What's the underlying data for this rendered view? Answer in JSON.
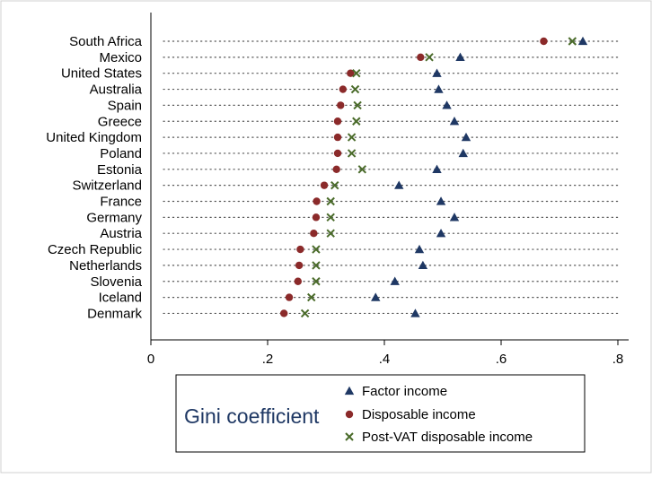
{
  "chart_data": {
    "type": "scatter",
    "categories": [
      "South Africa",
      "Mexico",
      "United States",
      "Australia",
      "Spain",
      "Greece",
      "United Kingdom",
      "Poland",
      "Estonia",
      "Switzerland",
      "France",
      "Germany",
      "Austria",
      "Czech Republic",
      "Netherlands",
      "Slovenia",
      "Iceland",
      "Denmark"
    ],
    "series": [
      {
        "name": "Factor income",
        "marker": "triangle",
        "color": "#1f3864",
        "values": [
          0.74,
          0.53,
          0.49,
          0.493,
          0.507,
          0.52,
          0.54,
          0.535,
          0.49,
          0.425,
          0.497,
          0.52,
          0.497,
          0.46,
          0.466,
          0.418,
          0.385,
          0.453
        ]
      },
      {
        "name": "Disposable income",
        "marker": "circle",
        "color": "#8b2a2a",
        "values": [
          0.673,
          0.462,
          0.342,
          0.329,
          0.325,
          0.32,
          0.32,
          0.32,
          0.318,
          0.297,
          0.284,
          0.283,
          0.279,
          0.256,
          0.254,
          0.252,
          0.237,
          0.228
        ]
      },
      {
        "name": "Post-VAT disposable income",
        "marker": "x",
        "color": "#4a6b2a",
        "values": [
          0.722,
          0.477,
          0.352,
          0.35,
          0.354,
          0.352,
          0.344,
          0.344,
          0.362,
          0.315,
          0.308,
          0.308,
          0.308,
          0.283,
          0.283,
          0.283,
          0.275,
          0.264
        ]
      }
    ],
    "xlim": [
      0,
      0.8
    ],
    "x_ticks": [
      "0",
      ".2",
      ".4",
      ".6",
      ".8"
    ],
    "legend": {
      "title": "Gini coefficient",
      "position": "bottom"
    }
  }
}
